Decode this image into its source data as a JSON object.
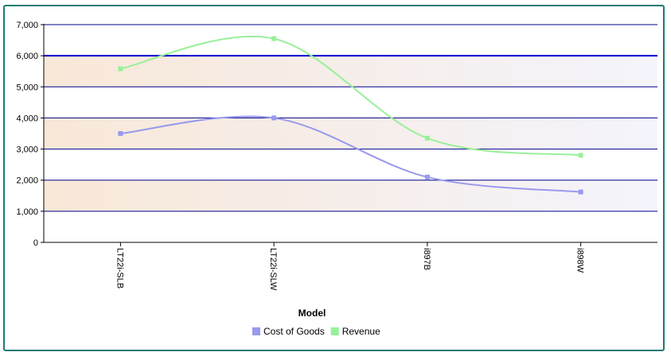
{
  "chart_data": {
    "type": "line",
    "categories": [
      "LT22i-SLB",
      "LT22i-SLW",
      "i897B",
      "i898W"
    ],
    "series": [
      {
        "name": "Cost of Goods",
        "values": [
          3500,
          4000,
          2100,
          1620
        ],
        "color": "#9999ee"
      },
      {
        "name": "Revenue",
        "values": [
          5580,
          6550,
          3350,
          2800
        ],
        "color": "#99f099"
      }
    ],
    "yticks": [
      "0",
      "1,000",
      "2,000",
      "3,000",
      "4,000",
      "5,000",
      "6,000",
      "7,000"
    ],
    "ylim": [
      0,
      7000
    ],
    "xlabel": "Model",
    "ylabel": "",
    "grid": true,
    "highlight_line_value": 6000,
    "legend_position": "bottom-center",
    "band_colors": [
      "#f8e8d8",
      "#f4f4fc"
    ]
  }
}
